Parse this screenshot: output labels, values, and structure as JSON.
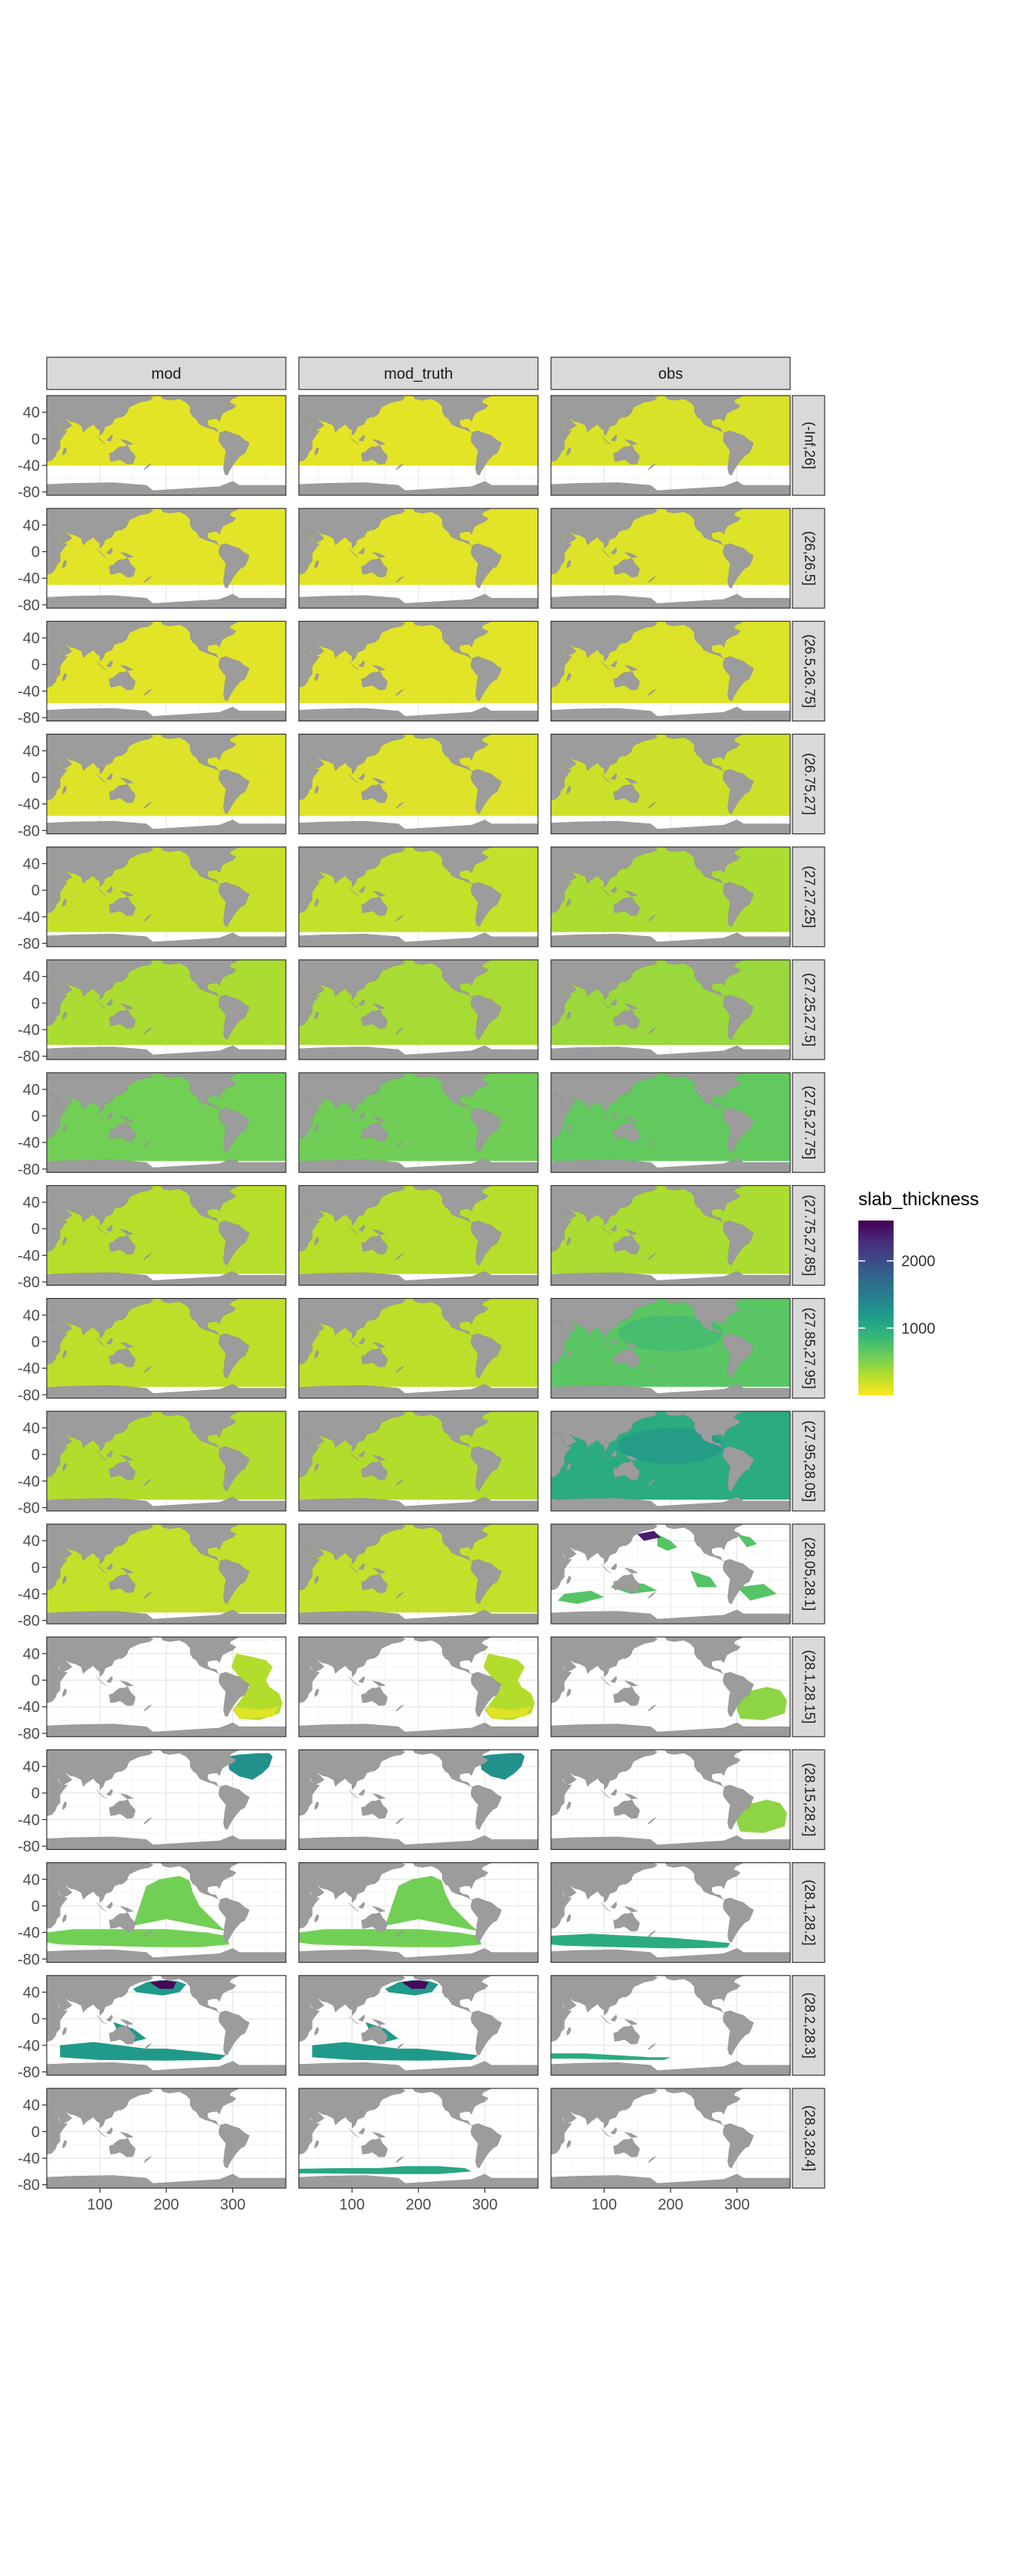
{
  "chart_data": {
    "type": "heatmap",
    "title": "",
    "xlabel": "",
    "ylabel": "",
    "columns": [
      "mod",
      "mod_truth",
      "obs"
    ],
    "rows": [
      "(-Inf,26]",
      "(26,26.5]",
      "(26.5,26.75]",
      "(26.75,27]",
      "(27,27.25]",
      "(27.25,27.5]",
      "(27.5,27.75]",
      "(27.75,27.85]",
      "(27.85,27.95]",
      "(27.95,28.05]",
      "(28.05,28.1]",
      "(28.1,28.15]",
      "(28.15,28.2]",
      "(28.1,28.2]",
      "(28.2,28.3]",
      "(28.3,28.4]"
    ],
    "x_ticks": [
      100,
      200,
      300
    ],
    "y_ticks": [
      40,
      0,
      -40,
      -80
    ],
    "xlim": [
      20,
      380
    ],
    "ylim": [
      -85,
      65
    ],
    "legend": {
      "title": "slab_thickness",
      "breaks": [
        2000,
        1000
      ],
      "range": [
        0,
        2600
      ],
      "palette": [
        "#fde725",
        "#b5de2b",
        "#6ece58",
        "#35b779",
        "#1f9e89",
        "#26828e",
        "#31688e",
        "#3e4989",
        "#482878",
        "#440154"
      ],
      "position": "right"
    },
    "panels": [
      {
        "row": 0,
        "col": 0,
        "coverage": "full",
        "value": 100,
        "south": "40S"
      },
      {
        "row": 0,
        "col": 1,
        "coverage": "full",
        "value": 100,
        "south": "40S"
      },
      {
        "row": 0,
        "col": 2,
        "coverage": "full",
        "value": 150,
        "south": "40S"
      },
      {
        "row": 1,
        "col": 0,
        "coverage": "full",
        "value": 110,
        "south": "50S"
      },
      {
        "row": 1,
        "col": 1,
        "coverage": "full",
        "value": 110,
        "south": "50S"
      },
      {
        "row": 1,
        "col": 2,
        "coverage": "full",
        "value": 130,
        "south": "50S"
      },
      {
        "row": 2,
        "col": 0,
        "coverage": "full",
        "value": 110,
        "south": "60S"
      },
      {
        "row": 2,
        "col": 1,
        "coverage": "full",
        "value": 110,
        "south": "60S"
      },
      {
        "row": 2,
        "col": 2,
        "coverage": "full",
        "value": 140,
        "south": "60S"
      },
      {
        "row": 3,
        "col": 0,
        "coverage": "full",
        "value": 130,
        "south": "60S"
      },
      {
        "row": 3,
        "col": 1,
        "coverage": "full",
        "value": 130,
        "south": "60S"
      },
      {
        "row": 3,
        "col": 2,
        "coverage": "full",
        "value": 200,
        "south": "60S"
      },
      {
        "row": 4,
        "col": 0,
        "coverage": "full",
        "value": 220,
        "south": "65S"
      },
      {
        "row": 4,
        "col": 1,
        "coverage": "full",
        "value": 230,
        "south": "65S"
      },
      {
        "row": 4,
        "col": 2,
        "coverage": "full",
        "value": 330,
        "south": "65S"
      },
      {
        "row": 5,
        "col": 0,
        "coverage": "full",
        "value": 330,
        "south": "65S"
      },
      {
        "row": 5,
        "col": 1,
        "coverage": "full",
        "value": 340,
        "south": "65S"
      },
      {
        "row": 5,
        "col": 2,
        "coverage": "full",
        "value": 400,
        "south": "65S"
      },
      {
        "row": 6,
        "col": 0,
        "coverage": "full",
        "value": 560,
        "south": "70S"
      },
      {
        "row": 6,
        "col": 1,
        "coverage": "full",
        "value": 570,
        "south": "70S"
      },
      {
        "row": 6,
        "col": 2,
        "coverage": "full",
        "value": 640,
        "south": "70S"
      },
      {
        "row": 7,
        "col": 0,
        "coverage": "full",
        "value": 280,
        "south": "70S"
      },
      {
        "row": 7,
        "col": 1,
        "coverage": "full",
        "value": 280,
        "south": "70S"
      },
      {
        "row": 7,
        "col": 2,
        "coverage": "full",
        "value": 330,
        "south": "70S"
      },
      {
        "row": 8,
        "col": 0,
        "coverage": "full",
        "value": 260,
        "south": "70S"
      },
      {
        "row": 8,
        "col": 1,
        "coverage": "full",
        "value": 260,
        "south": "70S"
      },
      {
        "row": 8,
        "col": 2,
        "coverage": "full",
        "value": 680,
        "south": "70S"
      },
      {
        "row": 9,
        "col": 0,
        "coverage": "full",
        "value": 300,
        "south": "70S"
      },
      {
        "row": 9,
        "col": 1,
        "coverage": "full",
        "value": 300,
        "south": "70S"
      },
      {
        "row": 9,
        "col": 2,
        "coverage": "full",
        "value": 1000,
        "south": "70S"
      },
      {
        "row": 10,
        "col": 0,
        "coverage": "full",
        "value": 230,
        "south": "70S"
      },
      {
        "row": 10,
        "col": 1,
        "coverage": "full",
        "value": 230,
        "south": "70S"
      },
      {
        "row": 10,
        "col": 2,
        "coverage": "patchy",
        "value": 700,
        "south": "70S"
      },
      {
        "row": 11,
        "col": 0,
        "coverage": "atlantic",
        "value": 300,
        "south": "70S"
      },
      {
        "row": 11,
        "col": 1,
        "coverage": "atlantic",
        "value": 300,
        "south": "70S"
      },
      {
        "row": 11,
        "col": 2,
        "coverage": "south-atlantic",
        "value": 450,
        "south": "70S"
      },
      {
        "row": 12,
        "col": 0,
        "coverage": "north-atlantic",
        "value": 1300,
        "south": "70S"
      },
      {
        "row": 12,
        "col": 1,
        "coverage": "north-atlantic",
        "value": 1300,
        "south": "70S"
      },
      {
        "row": 12,
        "col": 2,
        "coverage": "south-atlantic",
        "value": 450,
        "south": "70S"
      },
      {
        "row": 13,
        "col": 0,
        "coverage": "pacific-south",
        "value": 560,
        "south": "70S"
      },
      {
        "row": 13,
        "col": 1,
        "coverage": "pacific-south",
        "value": 560,
        "south": "70S"
      },
      {
        "row": 13,
        "col": 2,
        "coverage": "southern-band",
        "value": 1000,
        "south": "70S"
      },
      {
        "row": 14,
        "col": 0,
        "coverage": "north-pacific-south",
        "value": 1200,
        "south": "70S"
      },
      {
        "row": 14,
        "col": 1,
        "coverage": "north-pacific-south",
        "value": 1200,
        "south": "70S"
      },
      {
        "row": 14,
        "col": 2,
        "coverage": "southern-band-thin",
        "value": 1000,
        "south": "70S"
      },
      {
        "row": 15,
        "col": 0,
        "coverage": "none",
        "value": 0,
        "south": "70S"
      },
      {
        "row": 15,
        "col": 1,
        "coverage": "pacific-southern",
        "value": 1050,
        "south": "70S"
      },
      {
        "row": 15,
        "col": 2,
        "coverage": "none",
        "value": 0,
        "south": "70S"
      }
    ]
  }
}
